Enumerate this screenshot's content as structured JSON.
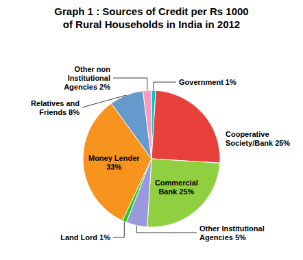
{
  "chart_data": {
    "type": "pie",
    "title": "Graph 1 : Sources of Credit per Rs 1000",
    "subtitle": "of Rural Households in India in 2012",
    "categories": [
      "Government 1%",
      "Cooperative\nSociety/Bank 25%",
      "Commercial\nBank 25%",
      "Other Institutional\nAgencies 5%",
      "Land Lord 1%",
      "Money Lender\n33%",
      "Relatives and\nFriends 8%",
      "Other non\nInstitutional\nAgencies 2%"
    ],
    "values": [
      1,
      25,
      25,
      5,
      1,
      33,
      8,
      2
    ],
    "colors": [
      "#00C8C8",
      "#E8403A",
      "#90D040",
      "#9999DD",
      "#22CC22",
      "#F7941D",
      "#6699CC",
      "#FF99BB"
    ]
  }
}
